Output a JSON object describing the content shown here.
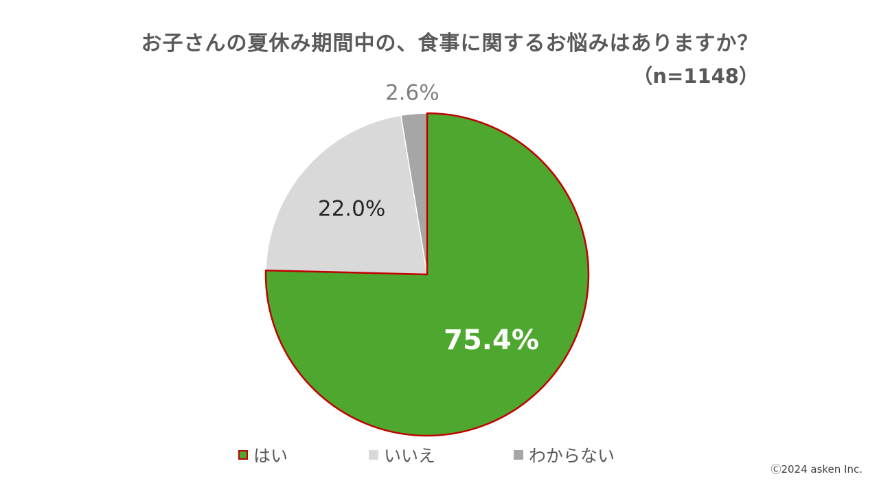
{
  "chart_data": {
    "type": "pie",
    "title": "お子さんの夏休み期間中の、食事に関するお悩みはありますか？",
    "subtitle": "（n=1148）",
    "start_angle_deg": 0,
    "direction": "clockwise",
    "legend_position": "bottom",
    "slices": [
      {
        "label": "はい",
        "value": 75.4,
        "display": "75.4%",
        "color": "#4ea72e",
        "border_color": "#c00000",
        "label_color": "#ffffff",
        "label_bold": true
      },
      {
        "label": "いいえ",
        "value": 22.0,
        "display": "22.0%",
        "color": "#d9d9d9",
        "border_color": "#ffffff",
        "label_color": "#262626",
        "label_bold": false
      },
      {
        "label": "わからない",
        "value": 2.6,
        "display": "2.6%",
        "color": "#a6a6a6",
        "border_color": "#ffffff",
        "label_color": "#7f7f7f",
        "label_bold": false
      }
    ]
  },
  "footer": {
    "copyright": "Ⓒ2024 asken Inc."
  }
}
